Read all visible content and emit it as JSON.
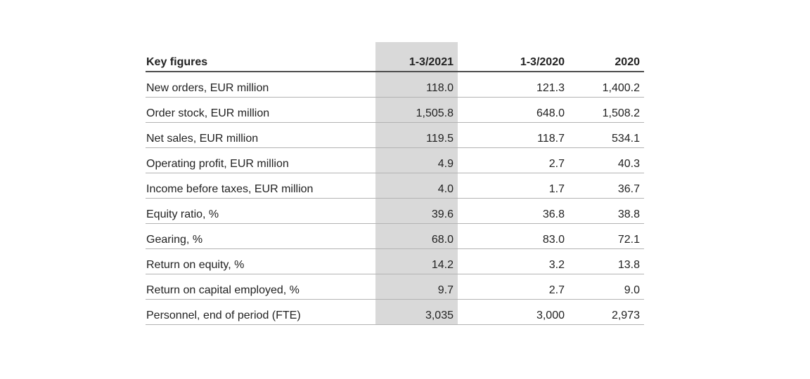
{
  "page": {
    "background_color": "#ffffff",
    "text_color": "#222222"
  },
  "table": {
    "columns": [
      "Key figures",
      "1-3/2021",
      "1-3/2020",
      "2020"
    ],
    "highlighted_column": "1-3/2021",
    "highlight_color": "#d9d9d9",
    "header_rule_color": "#4d4d4d",
    "row_rule_color": "#b3b3b3",
    "rows": [
      [
        "New orders, EUR million",
        "118.0",
        "121.3",
        "1,400.2"
      ],
      [
        "Order stock, EUR million",
        "1,505.8",
        "648.0",
        "1,508.2"
      ],
      [
        "Net sales, EUR million",
        "119.5",
        "118.7",
        "534.1"
      ],
      [
        "Operating profit, EUR million",
        "4.9",
        "2.7",
        "40.3"
      ],
      [
        "Income before taxes, EUR million",
        "4.0",
        "1.7",
        "36.7"
      ],
      [
        "Equity ratio, %",
        "39.6",
        "36.8",
        "38.8"
      ],
      [
        "Gearing, %",
        "68.0",
        "83.0",
        "72.1"
      ],
      [
        "Return on equity, %",
        "14.2",
        "3.2",
        "13.8"
      ],
      [
        "Return on capital employed, %",
        "9.7",
        "2.7",
        "9.0"
      ],
      [
        "Personnel, end of period (FTE)",
        "3,035",
        "3,000",
        "2,973"
      ]
    ]
  }
}
